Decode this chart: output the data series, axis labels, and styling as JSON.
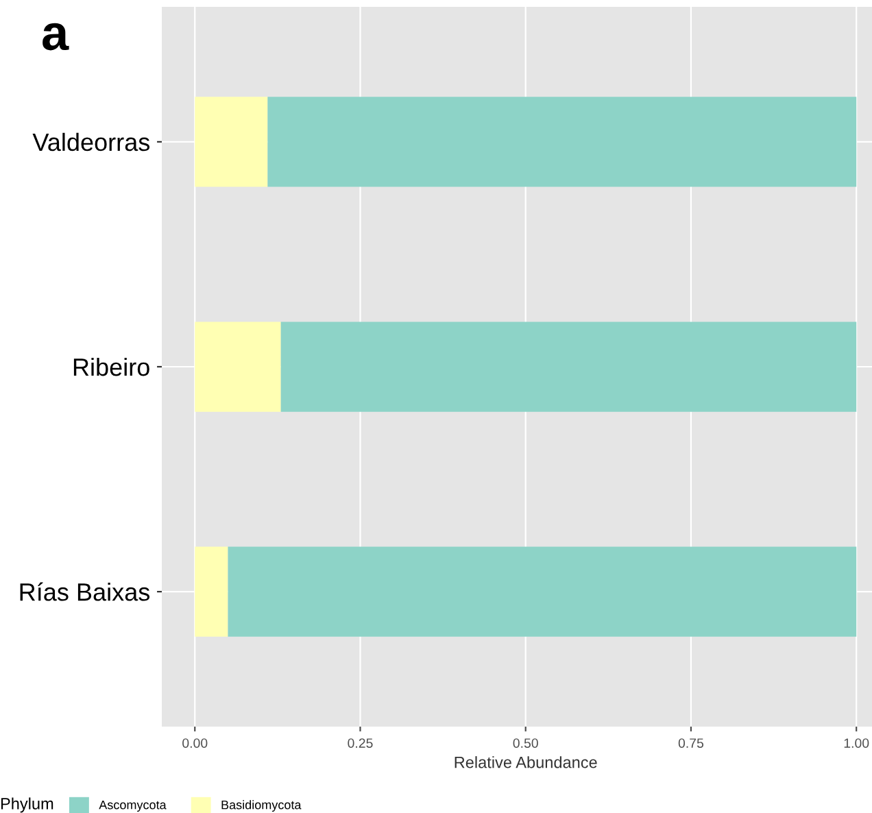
{
  "chart_data": {
    "type": "bar",
    "orientation": "horizontal",
    "stacked": true,
    "title": "a",
    "xlabel": "Relative Abundance",
    "legend_title": "Phylum",
    "categories": [
      "Valdeorras",
      "Ribeiro",
      "Rías Baixas"
    ],
    "series": [
      {
        "name": "Basidiomycota",
        "color": "#ffffb3",
        "values": [
          0.11,
          0.13,
          0.05
        ]
      },
      {
        "name": "Ascomycota",
        "color": "#8dd3c7",
        "values": [
          0.89,
          0.87,
          0.95
        ]
      }
    ],
    "xlim": [
      -0.05,
      1.05
    ],
    "xticks": [
      {
        "value": 0,
        "label": "0.00"
      },
      {
        "value": 0.25,
        "label": "0.25"
      },
      {
        "value": 0.5,
        "label": "0.50"
      },
      {
        "value": 0.75,
        "label": "0.75"
      },
      {
        "value": 1,
        "label": "1.00"
      }
    ],
    "grid": true,
    "legend": "bottom"
  }
}
